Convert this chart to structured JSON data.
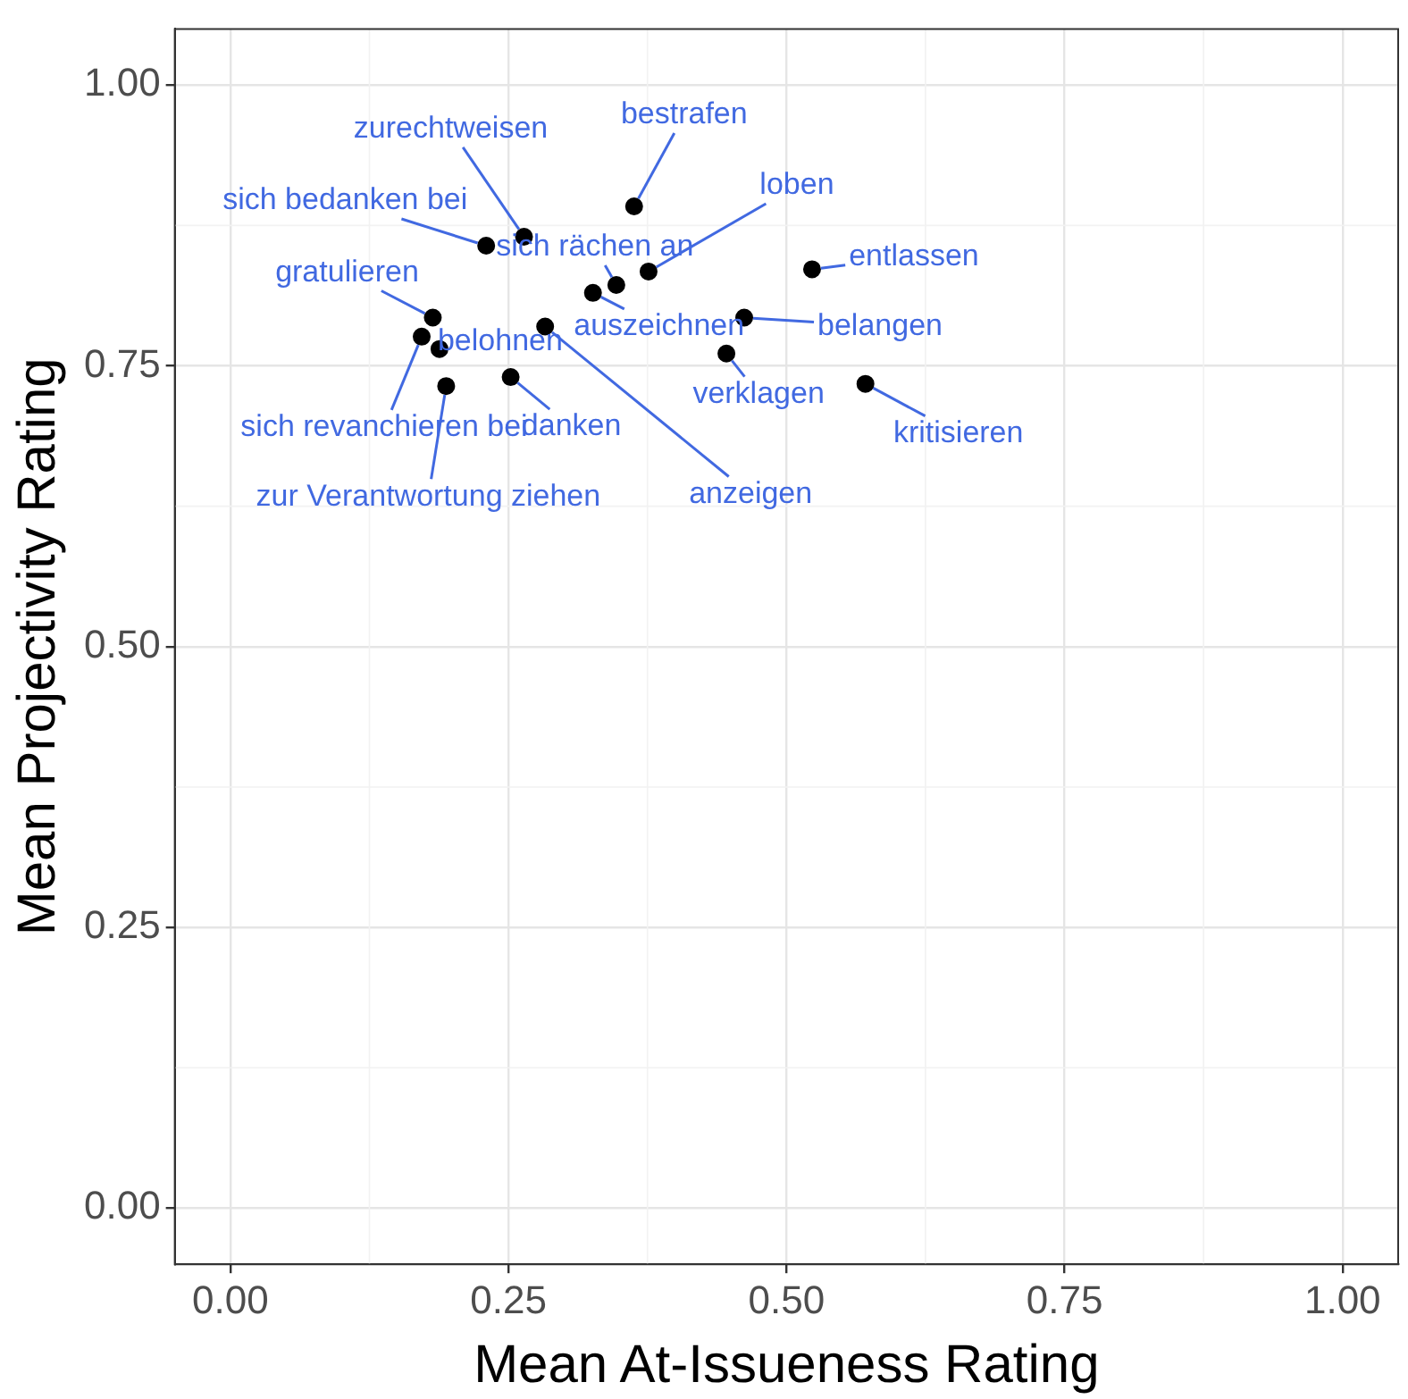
{
  "chart_data": {
    "type": "scatter",
    "xlabel": "Mean At-Issueness Rating",
    "ylabel": "Mean Projectivity Rating",
    "x": [
      0.363,
      0.264,
      0.23,
      0.376,
      0.523,
      0.347,
      0.326,
      0.182,
      0.462,
      0.283,
      0.172,
      0.188,
      0.446,
      0.194,
      0.252,
      0.571
    ],
    "series": [
      {
        "color": "#000000",
        "values": [
          0.892,
          0.865,
          0.857,
          0.834,
          0.836,
          0.822,
          0.815,
          0.793,
          0.793,
          0.785,
          0.776,
          0.765,
          0.761,
          0.732,
          0.74,
          0.734
        ]
      }
    ],
    "annotations": [
      {
        "text": "bestrafen",
        "x": 0.363,
        "y": 0.892
      },
      {
        "text": "zurechtweisen",
        "x": 0.264,
        "y": 0.865
      },
      {
        "text": "sich bedanken bei",
        "x": 0.23,
        "y": 0.857
      },
      {
        "text": "loben",
        "x": 0.376,
        "y": 0.834
      },
      {
        "text": "entlassen",
        "x": 0.523,
        "y": 0.836
      },
      {
        "text": "sich rächen an",
        "x": 0.347,
        "y": 0.822
      },
      {
        "text": "auszeichnen",
        "x": 0.326,
        "y": 0.815
      },
      {
        "text": "gratulieren",
        "x": 0.182,
        "y": 0.793
      },
      {
        "text": "belangen",
        "x": 0.462,
        "y": 0.793
      },
      {
        "text": "anzeigen",
        "x": 0.283,
        "y": 0.785
      },
      {
        "text": "sich revanchieren bei",
        "x": 0.172,
        "y": 0.776
      },
      {
        "text": "belohnen",
        "x": 0.188,
        "y": 0.765
      },
      {
        "text": "verklagen",
        "x": 0.446,
        "y": 0.761
      },
      {
        "text": "zur Verantwortung ziehen",
        "x": 0.194,
        "y": 0.732
      },
      {
        "text": "danken",
        "x": 0.252,
        "y": 0.74
      },
      {
        "text": "kritisieren",
        "x": 0.571,
        "y": 0.734
      }
    ],
    "xlim": [
      -0.05,
      1.05
    ],
    "ylim": [
      -0.05,
      1.05
    ],
    "xticks": [
      {
        "value": 0,
        "label": "0.00"
      },
      {
        "value": 0.25,
        "label": "0.25"
      },
      {
        "value": 0.5,
        "label": "0.50"
      },
      {
        "value": 0.75,
        "label": "0.75"
      },
      {
        "value": 1,
        "label": "1.00"
      }
    ],
    "yticks": [
      {
        "value": 0,
        "label": "0.00"
      },
      {
        "value": 0.25,
        "label": "0.25"
      },
      {
        "value": 0.5,
        "label": "0.50"
      },
      {
        "value": 0.75,
        "label": "0.75"
      },
      {
        "value": 1,
        "label": "1.00"
      }
    ],
    "grid": true,
    "legend": false,
    "marker": "circle"
  }
}
